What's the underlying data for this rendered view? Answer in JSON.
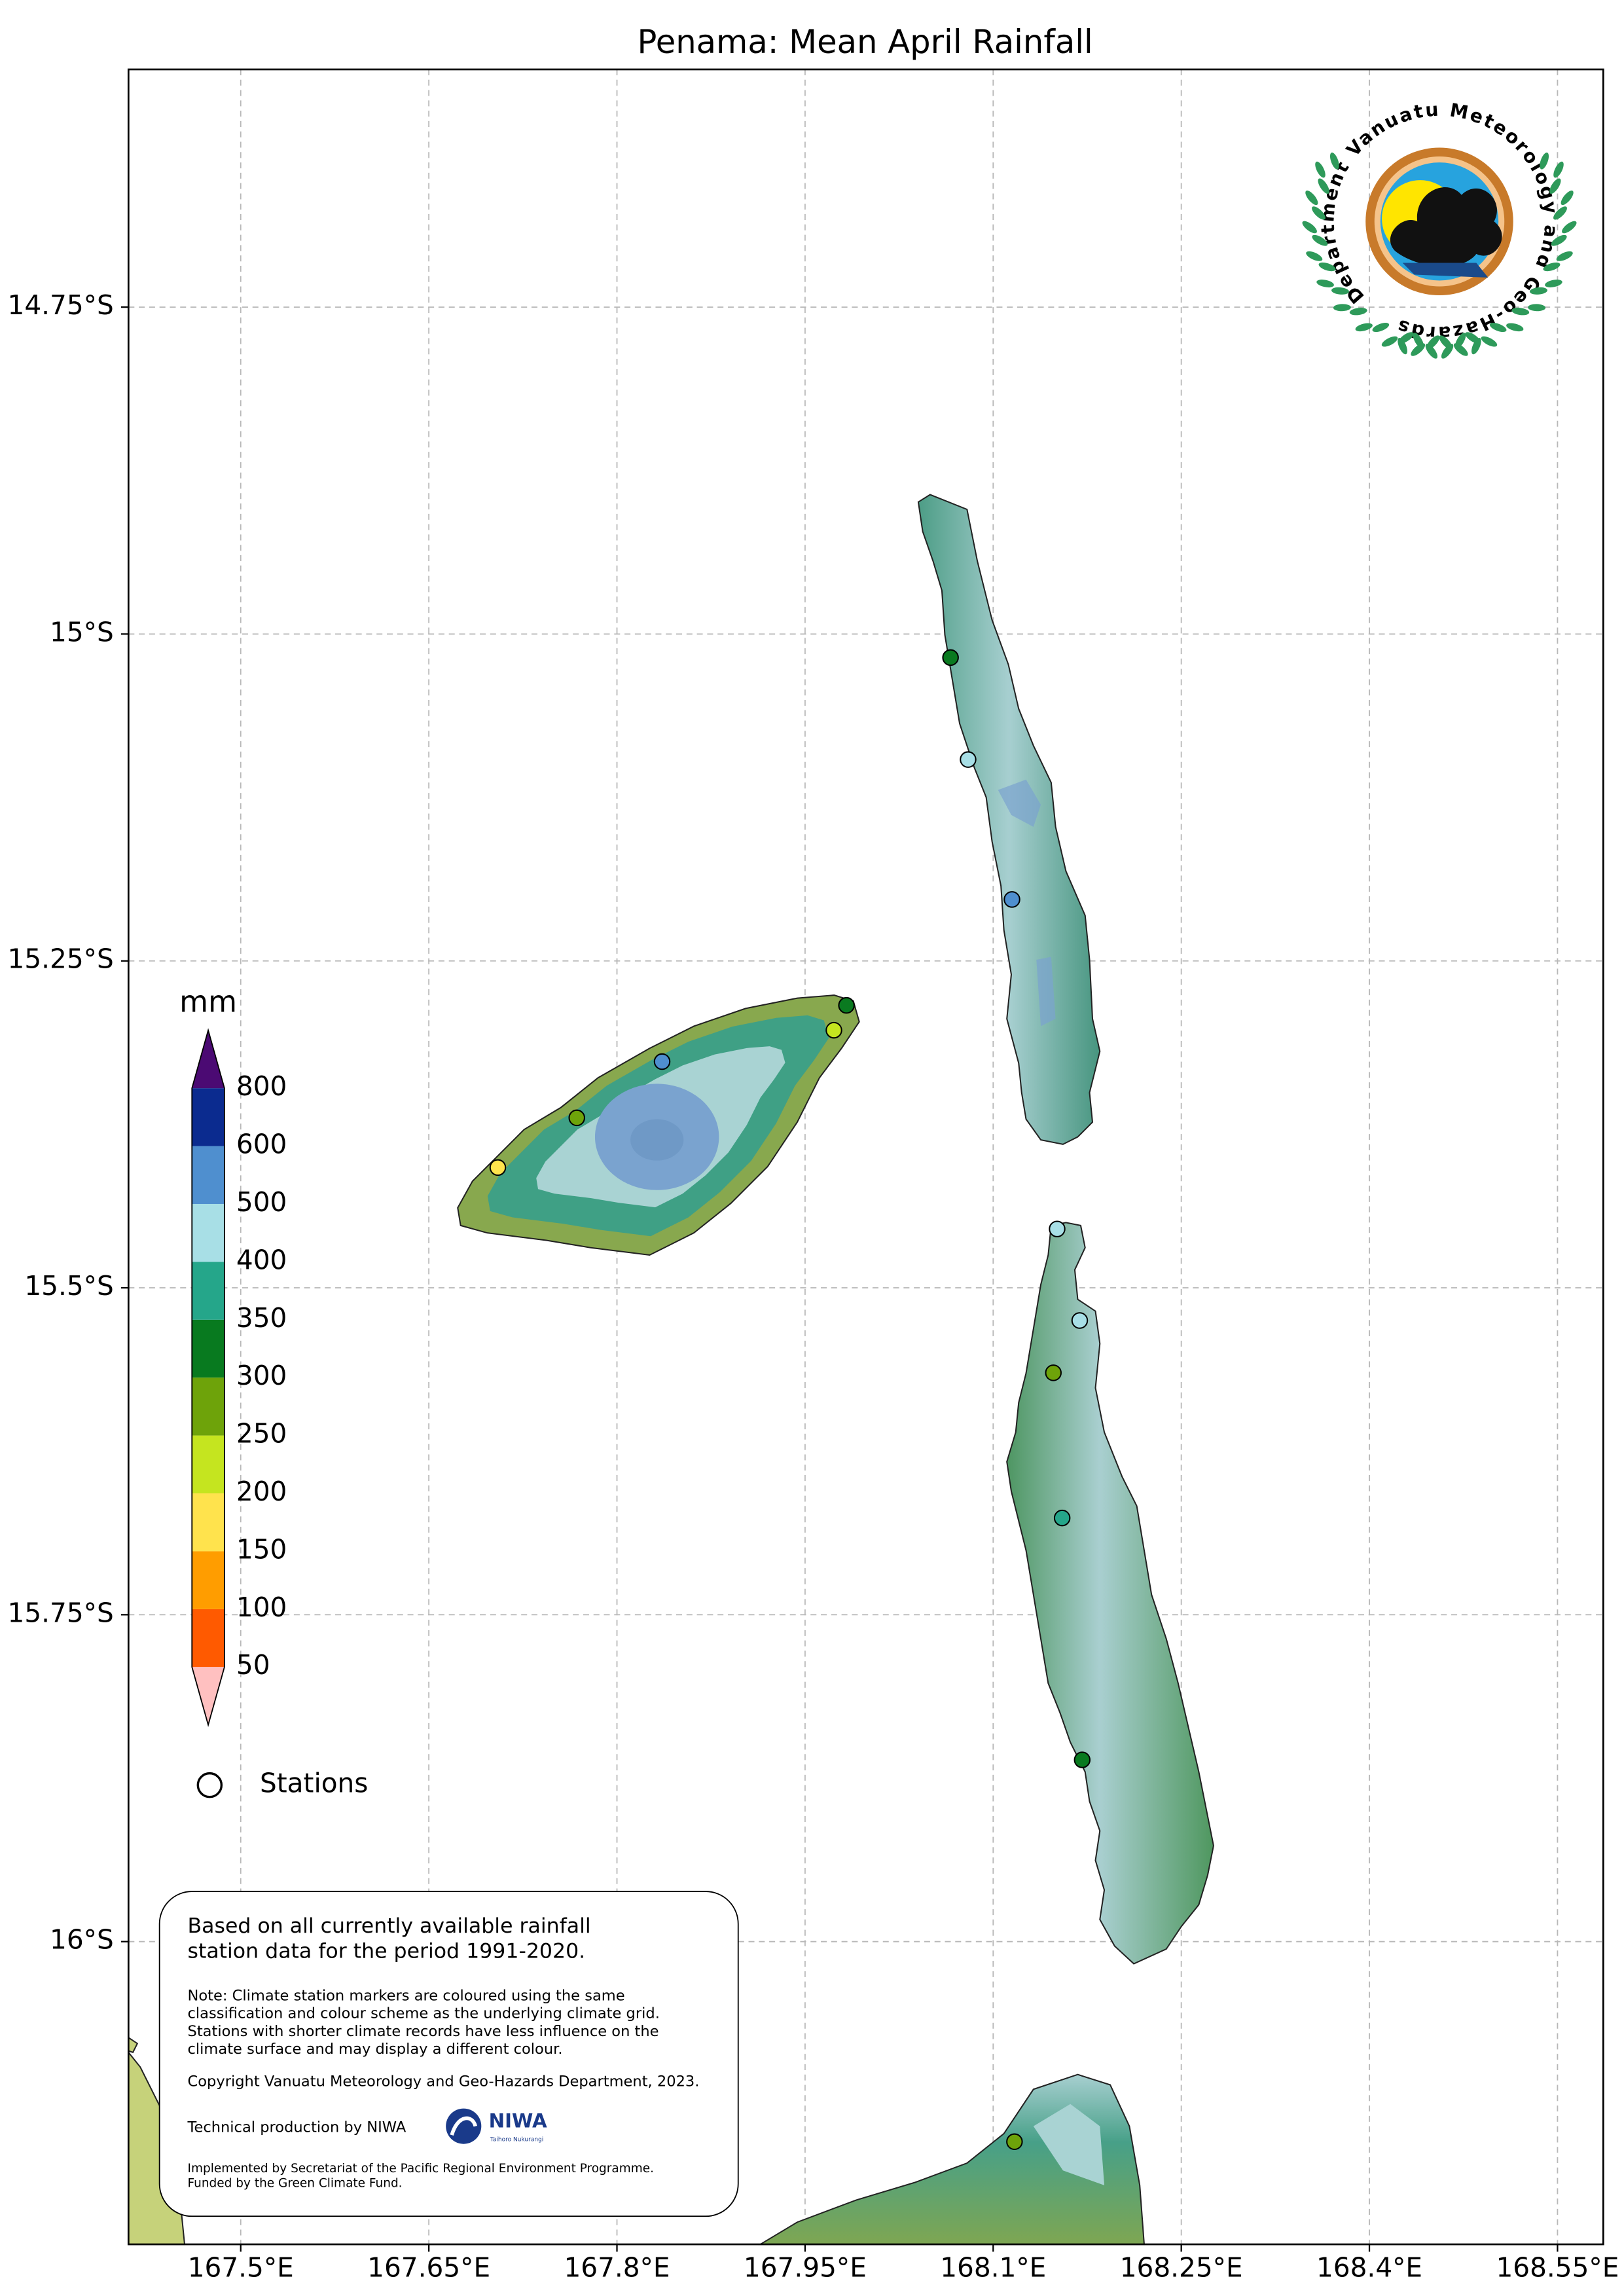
{
  "title": "Penama: Mean April Rainfall",
  "map": {
    "xlim": [
      167.4105,
      168.5865
    ],
    "ylim": [
      -16.2315,
      -14.5682
    ],
    "grid": true,
    "xticks": [
      {
        "value": 167.5,
        "label": "167.5°E"
      },
      {
        "value": 167.65,
        "label": "167.65°E"
      },
      {
        "value": 167.8,
        "label": "167.8°E"
      },
      {
        "value": 167.95,
        "label": "167.95°E"
      },
      {
        "value": 168.1,
        "label": "168.1°E"
      },
      {
        "value": 168.25,
        "label": "168.25°E"
      },
      {
        "value": 168.4,
        "label": "168.4°E"
      },
      {
        "value": 168.55,
        "label": "168.55°E"
      }
    ],
    "yticks": [
      {
        "value": -14.75,
        "label": "14.75°S"
      },
      {
        "value": -15,
        "label": "15°S"
      },
      {
        "value": -15.25,
        "label": "15.25°S"
      },
      {
        "value": -15.5,
        "label": "15.5°S"
      },
      {
        "value": -15.75,
        "label": "15.75°S"
      },
      {
        "value": -16,
        "label": "16°S"
      }
    ]
  },
  "colorbar": {
    "unit": "mm",
    "levels": [
      50,
      100,
      150,
      200,
      250,
      300,
      350,
      400,
      500,
      600,
      800
    ],
    "colors": [
      "#ff5a00",
      "#ff9d00",
      "#ffe34d",
      "#c5e51f",
      "#6ea30a",
      "#087a1f",
      "#25a68a",
      "#a8dfe6",
      "#4f8fcf",
      "#0b2b8f"
    ],
    "extend_min_color": "#ffc0c0",
    "extend_max_color": "#4b0a73"
  },
  "legend": {
    "stations": "Stations"
  },
  "stations": [
    {
      "lon": 168.066,
      "lat": -15.018,
      "color": "#0a7a20"
    },
    {
      "lon": 168.08,
      "lat": -15.096,
      "color": "#a8dfe6"
    },
    {
      "lon": 168.115,
      "lat": -15.203,
      "color": "#4f8fcf"
    },
    {
      "lon": 167.983,
      "lat": -15.284,
      "color": "#0a7a20"
    },
    {
      "lon": 167.973,
      "lat": -15.303,
      "color": "#c5e51f"
    },
    {
      "lon": 167.836,
      "lat": -15.327,
      "color": "#4f8fcf"
    },
    {
      "lon": 167.768,
      "lat": -15.37,
      "color": "#6ea30a"
    },
    {
      "lon": 167.705,
      "lat": -15.408,
      "color": "#ffe34d"
    },
    {
      "lon": 168.151,
      "lat": -15.455,
      "color": "#a8dfe6"
    },
    {
      "lon": 168.169,
      "lat": -15.525,
      "color": "#a8dfe6"
    },
    {
      "lon": 168.148,
      "lat": -15.565,
      "color": "#6ea30a"
    },
    {
      "lon": 168.155,
      "lat": -15.676,
      "color": "#25a68a"
    },
    {
      "lon": 168.171,
      "lat": -15.861,
      "color": "#087a1f"
    },
    {
      "lon": 168.117,
      "lat": -16.153,
      "color": "#6ea30a"
    }
  ],
  "notes": {
    "summary": [
      "Based on all currently available rainfall",
      "station data for the period 1991-2020."
    ],
    "note": [
      "Note: Climate station markers are coloured using the same",
      "classification and colour scheme as the underlying climate grid.",
      "Stations with shorter climate records have less influence on the",
      "climate surface and may display a different colour."
    ],
    "copyright": "Copyright Vanuatu Meteorology and Geo-Hazards Department, 2023.",
    "technical": "Technical production by NIWA",
    "implemented": [
      "Implemented by Secretariat of the Pacific Regional Environment Programme.",
      "Funded by the Green Climate Fund."
    ]
  },
  "niwa": {
    "name": "NIWA",
    "tagline": "Taihoro Nukurangi"
  },
  "logo": {
    "text": "Department Vanuatu Meteorology and Geo-Hazards"
  }
}
